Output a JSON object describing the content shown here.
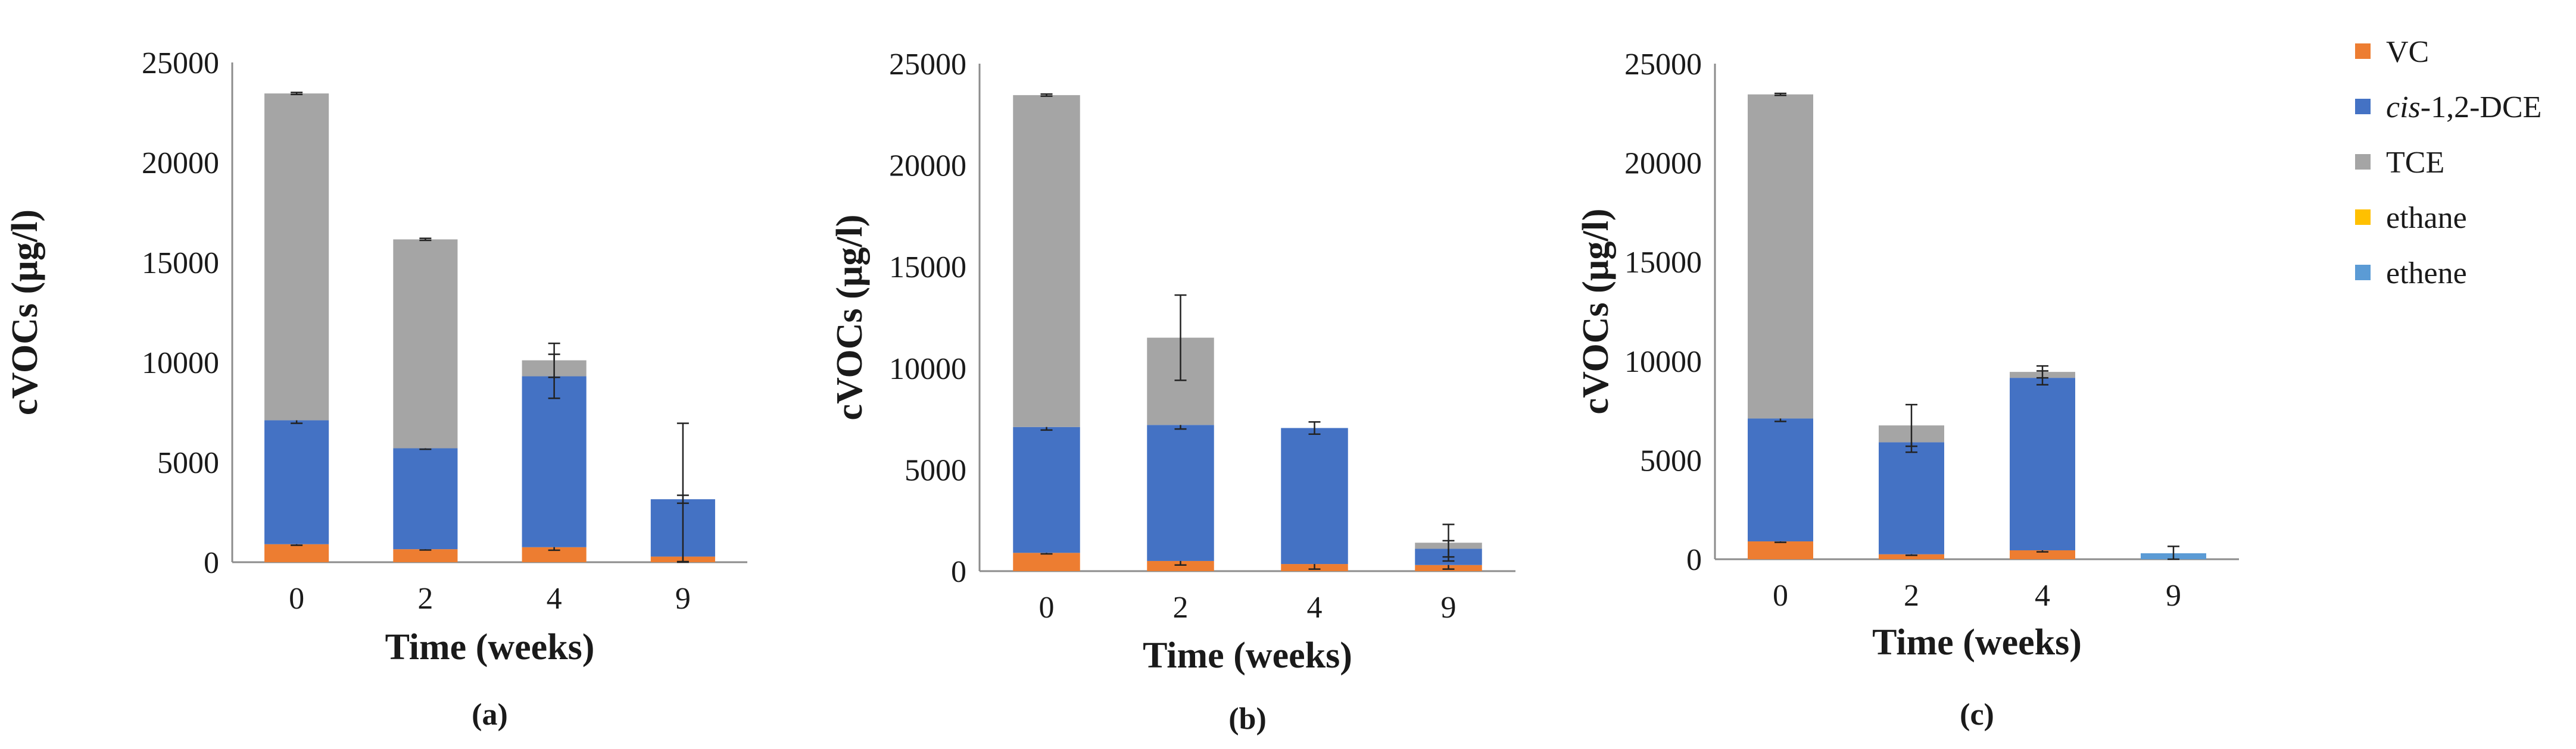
{
  "legend": [
    {
      "key": "VC",
      "label": "VC",
      "color": "#ED7D31"
    },
    {
      "key": "cis_dce",
      "label_italic": "cis",
      "label_rest": "-1,2-DCE",
      "color": "#4472C4"
    },
    {
      "key": "TCE",
      "label": "TCE",
      "color": "#A5A5A5"
    },
    {
      "key": "ethane",
      "label": "ethane",
      "color": "#FFC000"
    },
    {
      "key": "ethene",
      "label": "ethene",
      "color": "#5B9BD5"
    }
  ],
  "chart_data": [
    {
      "type": "bar",
      "stacked": true,
      "panel_label": "(a)",
      "xlabel": "Time (weeks)",
      "ylabel": "cVOCs (µg/l)",
      "ylim": [
        0,
        25000
      ],
      "yticks": [
        "0",
        "5000",
        "10000",
        "15000",
        "20000",
        "25000"
      ],
      "categories": [
        "0",
        "2",
        "4",
        "9"
      ],
      "series": [
        {
          "name": "VC",
          "values": [
            900,
            650,
            750,
            280
          ],
          "errors": [
            50,
            40,
            150,
            250
          ]
        },
        {
          "name": "cis-1,2-DCE",
          "values": [
            6200,
            5050,
            8550,
            2870
          ],
          "errors": [
            150,
            50,
            1100,
            200
          ]
        },
        {
          "name": "TCE",
          "values": [
            16350,
            10450,
            800,
            0
          ],
          "errors": [
            50,
            50,
            850,
            3800
          ]
        },
        {
          "name": "ethane",
          "values": [
            0,
            0,
            0,
            0
          ],
          "errors": [
            0,
            0,
            0,
            0
          ]
        },
        {
          "name": "ethene",
          "values": [
            0,
            0,
            0,
            0
          ],
          "errors": [
            0,
            0,
            0,
            0
          ]
        }
      ]
    },
    {
      "type": "bar",
      "stacked": true,
      "panel_label": "(b)",
      "xlabel": "Time (weeks)",
      "ylabel": "cVOCs (µg/l)",
      "ylim": [
        0,
        25000
      ],
      "yticks": [
        "0",
        "5000",
        "10000",
        "15000",
        "20000",
        "25000"
      ],
      "categories": [
        "0",
        "2",
        "4",
        "9"
      ],
      "series": [
        {
          "name": "VC",
          "values": [
            900,
            500,
            350,
            300
          ],
          "errors": [
            50,
            200,
            250,
            200
          ]
        },
        {
          "name": "cis-1,2-DCE",
          "values": [
            6200,
            6700,
            6700,
            800
          ],
          "errors": [
            150,
            200,
            300,
            400
          ]
        },
        {
          "name": "TCE",
          "values": [
            16350,
            4300,
            0,
            300
          ],
          "errors": [
            50,
            2100,
            0,
            900
          ]
        },
        {
          "name": "ethane",
          "values": [
            0,
            0,
            0,
            0
          ],
          "errors": [
            0,
            0,
            0,
            0
          ]
        },
        {
          "name": "ethene",
          "values": [
            0,
            0,
            0,
            0
          ],
          "errors": [
            0,
            0,
            0,
            0
          ]
        }
      ]
    },
    {
      "type": "bar",
      "stacked": true,
      "panel_label": "(c)",
      "xlabel": "Time (weeks)",
      "ylabel": "cVOCs (µg/l)",
      "ylim": [
        0,
        25000
      ],
      "yticks": [
        "0",
        "5000",
        "10000",
        "15000",
        "20000",
        "25000"
      ],
      "categories": [
        "0",
        "2",
        "4",
        "9"
      ],
      "series": [
        {
          "name": "VC",
          "values": [
            900,
            250,
            450,
            0
          ],
          "errors": [
            50,
            50,
            80,
            0
          ]
        },
        {
          "name": "cis-1,2-DCE",
          "values": [
            6200,
            5650,
            8700,
            0
          ],
          "errors": [
            150,
            500,
            350,
            0
          ]
        },
        {
          "name": "TCE",
          "values": [
            16350,
            850,
            300,
            0
          ],
          "errors": [
            50,
            1050,
            300,
            0
          ]
        },
        {
          "name": "ethane",
          "values": [
            0,
            0,
            0,
            0
          ],
          "errors": [
            0,
            0,
            0,
            0
          ]
        },
        {
          "name": "ethene",
          "values": [
            0,
            0,
            0,
            300
          ],
          "errors": [
            0,
            0,
            0,
            350
          ]
        }
      ]
    }
  ]
}
